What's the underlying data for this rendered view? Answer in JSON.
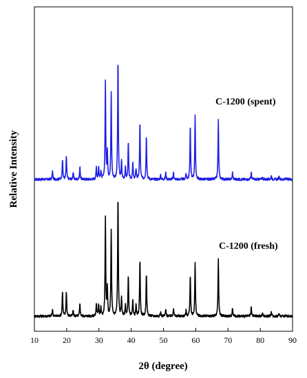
{
  "chart_data": {
    "type": "line",
    "xlabel": "2θ (degree)",
    "ylabel": "Relative Intensity",
    "xlim": [
      10,
      90
    ],
    "xticks": [
      10,
      20,
      30,
      40,
      50,
      60,
      70,
      80,
      90
    ],
    "y_tick_labels": false,
    "grid": false,
    "legend": "none",
    "peaks_2theta": [
      15.6,
      18.7,
      19.9,
      22.0,
      24.1,
      29.2,
      29.9,
      30.6,
      32.0,
      32.6,
      33.8,
      35.9,
      37.0,
      38.2,
      39.1,
      40.5,
      41.5,
      42.7,
      44.7,
      49.1,
      50.7,
      53.1,
      57.0,
      58.3,
      59.8,
      67.0,
      71.4,
      77.2,
      80.7,
      83.4,
      85.8,
      88.0
    ],
    "series": [
      {
        "name": "C-1200 (spent)",
        "color": "#1e1ee6",
        "baseline": 0.0,
        "relative_intensity": [
          0.06,
          0.15,
          0.17,
          0.05,
          0.09,
          0.09,
          0.09,
          0.06,
          0.71,
          0.2,
          0.63,
          0.88,
          0.13,
          0.08,
          0.27,
          0.12,
          0.08,
          0.42,
          0.32,
          0.03,
          0.05,
          0.05,
          0.04,
          0.39,
          0.46,
          0.43,
          0.05,
          0.05,
          0.02,
          0.03,
          0.02,
          0.01
        ]
      },
      {
        "name": "C-1200 (fresh)",
        "color": "#000000",
        "baseline": 0.0,
        "relative_intensity": [
          0.05,
          0.18,
          0.18,
          0.04,
          0.09,
          0.09,
          0.09,
          0.06,
          0.71,
          0.2,
          0.63,
          0.88,
          0.13,
          0.08,
          0.3,
          0.12,
          0.08,
          0.42,
          0.32,
          0.03,
          0.05,
          0.06,
          0.04,
          0.3,
          0.39,
          0.42,
          0.06,
          0.06,
          0.02,
          0.03,
          0.02,
          0.01
        ]
      }
    ]
  }
}
